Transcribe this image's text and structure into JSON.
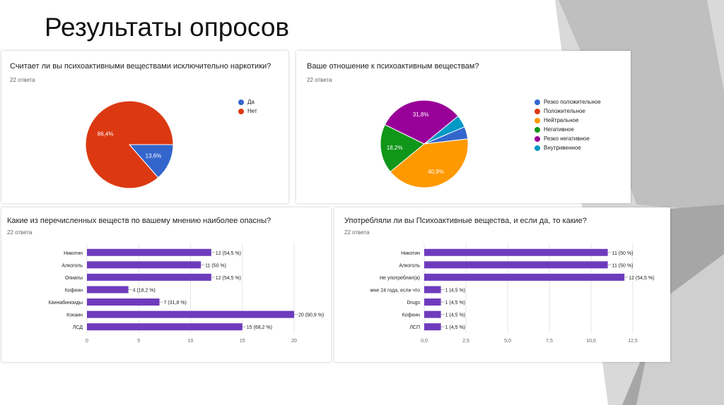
{
  "slide": {
    "title": "Результаты опросов"
  },
  "colors": {
    "blue": "#3366cc",
    "red": "#dc3912",
    "orange": "#ff9900",
    "green": "#109618",
    "purple": "#990099",
    "teal": "#0099c6",
    "bar": "#6f3bbd",
    "grid": "#e6e6e6",
    "deco_gray": "#b8b8b8"
  },
  "chart_data": [
    {
      "type": "pie",
      "title": "Считает ли вы психоактивными веществами исключительно наркотики?",
      "subtitle": "22 ответа",
      "categories": [
        "Да",
        "Нет"
      ],
      "values": [
        13.6,
        86.4
      ],
      "labels": [
        "13,6%",
        "86,4%"
      ],
      "colors": [
        "#3366cc",
        "#dc3912"
      ],
      "legend": "right"
    },
    {
      "type": "pie",
      "title": "Ваше отношение к психоактивным веществам?",
      "subtitle": "22 ответа",
      "categories": [
        "Резко положительное",
        "Положительное",
        "Нейтральное",
        "Негативное",
        "Резко негативное",
        "Внутривенное"
      ],
      "values": [
        4.55,
        0,
        40.9,
        18.2,
        31.8,
        4.55
      ],
      "labels": [
        "",
        "",
        "40,9%",
        "18,2%",
        "31,8%",
        ""
      ],
      "colors": [
        "#3366cc",
        "#dc3912",
        "#ff9900",
        "#109618",
        "#990099",
        "#0099c6"
      ],
      "legend": "right"
    },
    {
      "type": "bar",
      "orientation": "horizontal",
      "title": "Какие из перечисленных веществ по вашему мнению наиболее опасны?",
      "subtitle": "22 ответа",
      "categories": [
        "Никотин",
        "Алкоголь",
        "Опиаты",
        "Кофеин",
        "Каннабиноиды",
        "Кокаин",
        "ЛСД"
      ],
      "values": [
        12,
        11,
        12,
        4,
        7,
        20,
        15
      ],
      "data_labels": [
        "12 (54,5 %)",
        "11 (50 %)",
        "12 (54,5 %)",
        "4 (18,2 %)",
        "7 (31,8 %)",
        "20 (90,9 %)",
        "15 (68,2 %)"
      ],
      "xlim": [
        0,
        20
      ],
      "ticks": [
        0,
        5,
        10,
        15,
        20
      ],
      "tick_labels": [
        "0",
        "5",
        "10",
        "15",
        "20"
      ],
      "grid": true
    },
    {
      "type": "bar",
      "orientation": "horizontal",
      "title": "Употребляли ли вы Психоактивные вещества, и если да, то какие?",
      "subtitle": "22 ответа",
      "categories": [
        "Никотин",
        "Алкоголь",
        "Не употреблял(а)",
        "мне 24 года, если что",
        "Drugs",
        "Кофеин",
        "ЛСП"
      ],
      "values": [
        11,
        11,
        12,
        1,
        1,
        1,
        1
      ],
      "data_labels": [
        "11 (50 %)",
        "11 (50 %)",
        "12 (54,5 %)",
        "1 (4,5 %)",
        "1 (4,5 %)",
        "1 (4,5 %)",
        "1 (4,5 %)"
      ],
      "xlim": [
        0,
        12.5
      ],
      "ticks": [
        0,
        2.5,
        5,
        7.5,
        10,
        12.5
      ],
      "tick_labels": [
        "0,0",
        "2,5",
        "5,0",
        "7,5",
        "10,0",
        "12,5"
      ],
      "grid": true
    }
  ]
}
